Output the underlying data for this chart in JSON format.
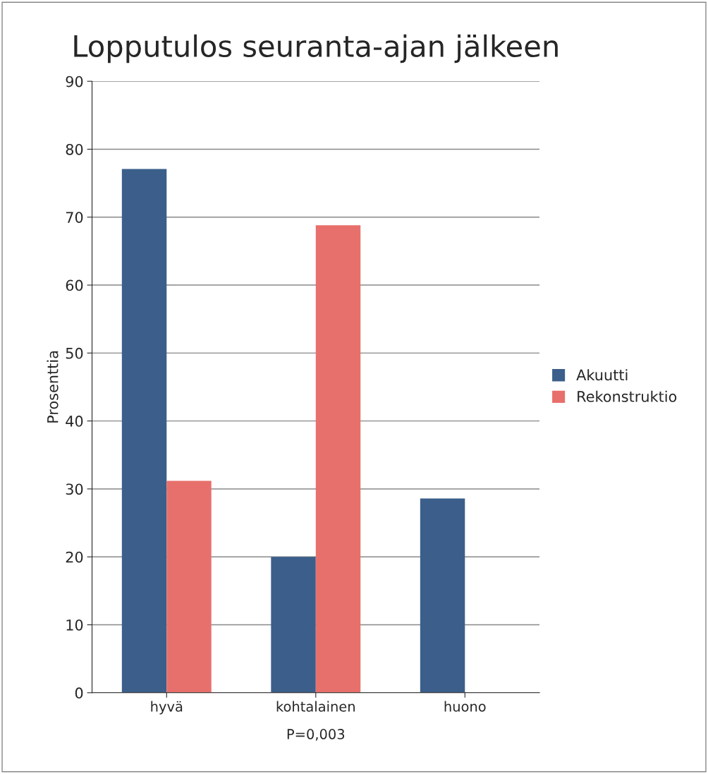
{
  "chart_data": {
    "type": "bar",
    "title": "Lopputulos seuranta-ajan jälkeen",
    "ylabel": "Prosenttia",
    "categories": [
      "hyvä",
      "kohtalainen",
      "huono"
    ],
    "series": [
      {
        "name": "Akuutti",
        "color": "#3b5f8a",
        "values": [
          77.1,
          20,
          28.6
        ]
      },
      {
        "name": "Rekonstruktio",
        "color": "#e8706c",
        "values": [
          31.2,
          68.8,
          null
        ]
      }
    ],
    "ylim": [
      0,
      90
    ],
    "yticks": [
      0,
      10,
      20,
      30,
      40,
      50,
      60,
      70,
      80,
      90
    ],
    "grid": "y",
    "legend": "right",
    "annotations": [
      "P=0,003"
    ]
  }
}
